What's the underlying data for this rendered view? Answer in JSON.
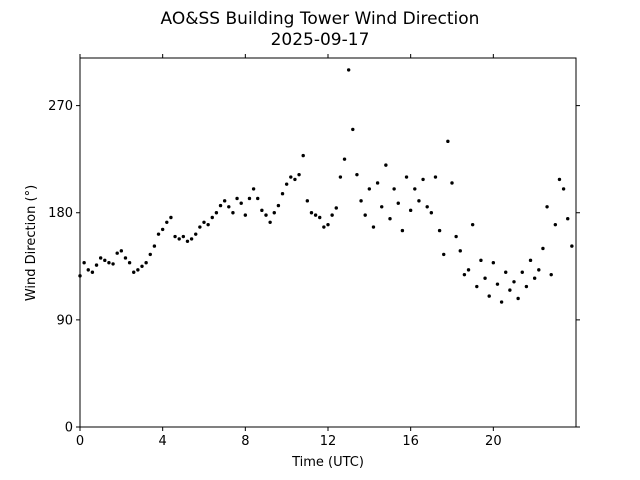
{
  "chart_data": {
    "type": "scatter",
    "title": "AO&SS Building Tower Wind Direction",
    "subtitle": "2025-09-17",
    "x_label": "Time (UTC)",
    "y_label": "Wind Direction (°)",
    "color": "#000000",
    "xlim": [
      0,
      24
    ],
    "xticks": [
      0,
      4,
      8,
      12,
      16,
      20
    ],
    "ylim": [
      0,
      310
    ],
    "yticks": [
      0,
      90,
      180,
      270
    ],
    "x": [
      0,
      0.2,
      0.4,
      0.6,
      0.8,
      1,
      1.2,
      1.4,
      1.6,
      1.8,
      2,
      2.2,
      2.4,
      2.6,
      2.8,
      3,
      3.2,
      3.4,
      3.6,
      3.8,
      4,
      4.2,
      4.4,
      4.6,
      4.8,
      5,
      5.2,
      5.4,
      5.6,
      5.8,
      6,
      6.2,
      6.4,
      6.6,
      6.8,
      7,
      7.2,
      7.4,
      7.6,
      7.8,
      8,
      8.2,
      8.4,
      8.6,
      8.8,
      9,
      9.2,
      9.4,
      9.6,
      9.8,
      10,
      10.2,
      10.4,
      10.6,
      10.8,
      11,
      11.2,
      11.4,
      11.6,
      11.8,
      12,
      12.2,
      12.4,
      12.6,
      12.8,
      13,
      13.2,
      13.4,
      13.6,
      13.8,
      14,
      14.2,
      14.4,
      14.6,
      14.8,
      15,
      15.2,
      15.4,
      15.6,
      15.8,
      16,
      16.2,
      16.4,
      16.6,
      16.8,
      17,
      17.2,
      17.4,
      17.6,
      17.8,
      18,
      18.2,
      18.4,
      18.6,
      18.8,
      19,
      19.2,
      19.4,
      19.6,
      19.8,
      20,
      20.2,
      20.4,
      20.6,
      20.8,
      21,
      21.2,
      21.4,
      21.6,
      21.8,
      22,
      22.2,
      22.4,
      22.6,
      22.8,
      23,
      23.2,
      23.4,
      23.6,
      23.8
    ],
    "values": [
      127,
      138,
      132,
      130,
      136,
      142,
      140,
      138,
      137,
      146,
      148,
      142,
      138,
      130,
      132,
      135,
      138,
      145,
      152,
      162,
      166,
      172,
      176,
      160,
      158,
      160,
      156,
      158,
      162,
      168,
      172,
      170,
      176,
      180,
      186,
      190,
      185,
      180,
      192,
      188,
      178,
      192,
      200,
      192,
      182,
      178,
      172,
      180,
      186,
      196,
      204,
      210,
      208,
      212,
      228,
      190,
      180,
      178,
      176,
      168,
      170,
      178,
      184,
      210,
      225,
      300,
      250,
      212,
      190,
      178,
      200,
      168,
      205,
      185,
      220,
      175,
      200,
      188,
      165,
      210,
      182,
      200,
      190,
      208,
      185,
      180,
      210,
      165,
      145,
      240,
      205,
      160,
      148,
      128,
      132,
      170,
      118,
      140,
      125,
      110,
      138,
      120,
      105,
      130,
      115,
      122,
      108,
      130,
      118,
      140,
      125,
      132,
      150,
      185,
      128,
      170,
      208,
      200,
      175,
      152
    ]
  }
}
